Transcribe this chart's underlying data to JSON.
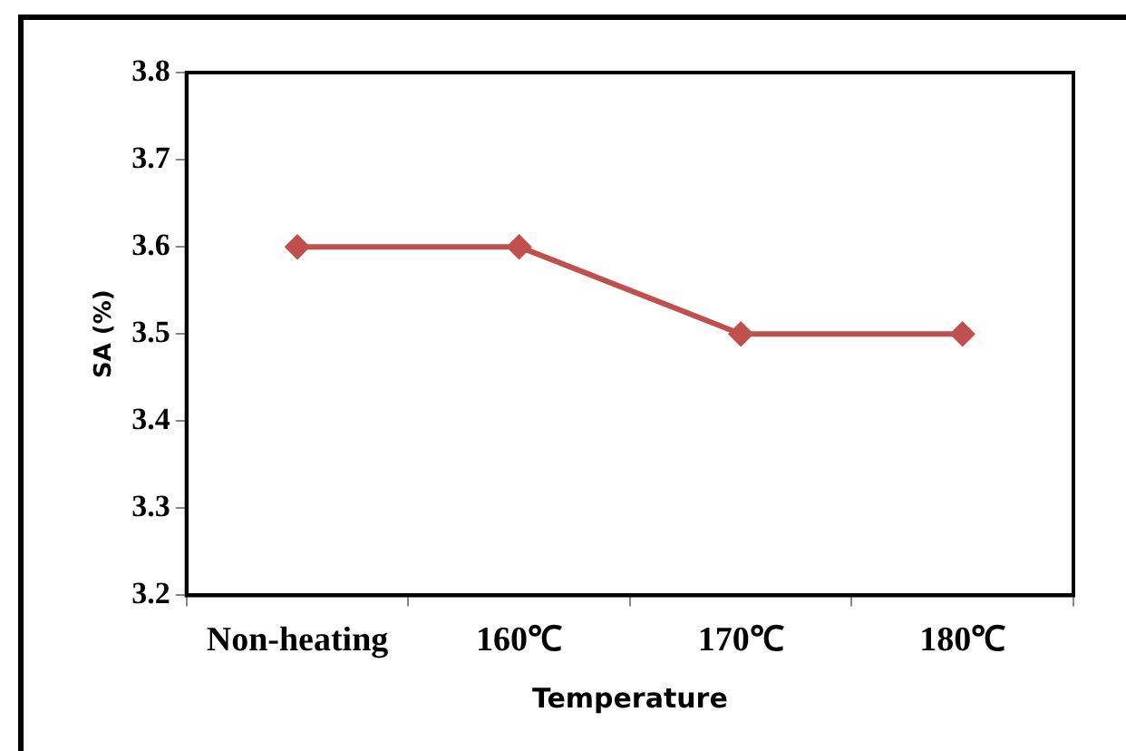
{
  "chart_data": {
    "type": "line",
    "xlabel": "Temperature",
    "ylabel": "SA (%)",
    "categories": [
      "Non-heating",
      "160℃",
      "170℃",
      "180℃"
    ],
    "series": [
      {
        "color": "#c0504d",
        "values": [
          3.6,
          3.6,
          3.5,
          3.5
        ]
      }
    ],
    "ylim": [
      3.2,
      3.8
    ],
    "yticks": [
      3.2,
      3.3,
      3.4,
      3.5,
      3.6,
      3.7,
      3.8
    ],
    "grid": false,
    "legend": false,
    "marker": "diamond",
    "line_style": "solid"
  }
}
